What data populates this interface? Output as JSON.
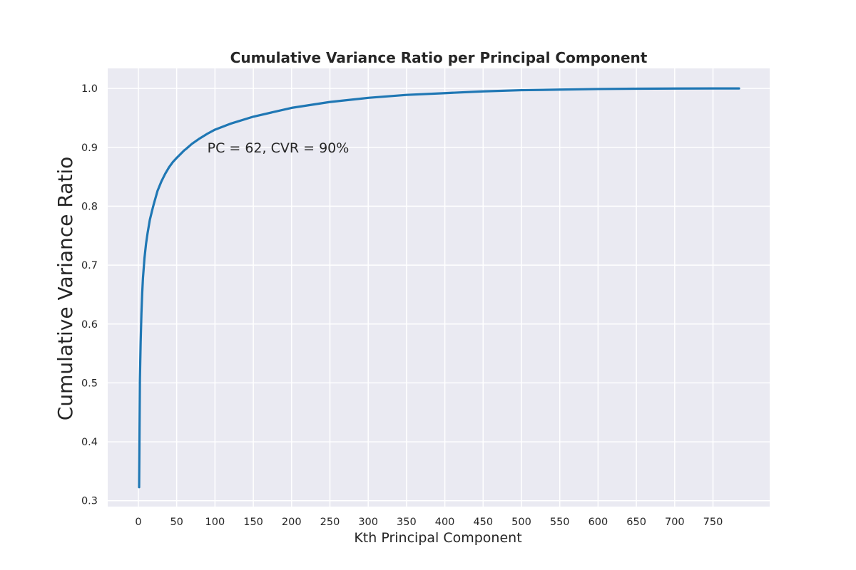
{
  "chart_data": {
    "type": "line",
    "title": "Cumulative Variance Ratio per Principal Component",
    "xlabel": "Kth Principal Component",
    "ylabel": "Cumulative Variance Ratio",
    "xlim": [
      -40,
      824
    ],
    "ylim": [
      0.29,
      1.034
    ],
    "xticks": [
      0,
      50,
      100,
      150,
      200,
      250,
      300,
      350,
      400,
      450,
      500,
      550,
      600,
      650,
      700,
      750
    ],
    "xtick_labels": [
      "0",
      "50",
      "100",
      "150",
      "200",
      "250",
      "300",
      "350",
      "400",
      "450",
      "500",
      "550",
      "600",
      "650",
      "700",
      "750"
    ],
    "yticks": [
      0.3,
      0.4,
      0.5,
      0.6,
      0.7,
      0.8,
      0.9,
      1.0
    ],
    "ytick_labels": [
      "0.3",
      "0.4",
      "0.5",
      "0.6",
      "0.7",
      "0.8",
      "0.9",
      "1.0"
    ],
    "grid": true,
    "colors": {
      "plot_background": "#eaeaf2",
      "grid": "#ffffff",
      "line": "#1f77b4"
    },
    "series": [
      {
        "x": [
          1,
          2,
          3,
          4,
          5,
          6,
          8,
          10,
          12,
          15,
          18,
          20,
          25,
          30,
          35,
          40,
          45,
          50,
          60,
          62,
          70,
          80,
          90,
          100,
          120,
          150,
          200,
          250,
          300,
          350,
          400,
          450,
          500,
          550,
          600,
          650,
          700,
          750,
          784
        ],
        "y": [
          0.323,
          0.505,
          0.57,
          0.618,
          0.652,
          0.678,
          0.712,
          0.736,
          0.754,
          0.777,
          0.793,
          0.803,
          0.826,
          0.842,
          0.855,
          0.866,
          0.875,
          0.882,
          0.895,
          0.897,
          0.906,
          0.915,
          0.923,
          0.93,
          0.94,
          0.952,
          0.967,
          0.977,
          0.984,
          0.989,
          0.992,
          0.995,
          0.997,
          0.998,
          0.999,
          0.9995,
          0.9998,
          1.0,
          1.0
        ]
      }
    ],
    "annotations": [
      {
        "text": "PC = 62, CVR = 90%",
        "x": 90,
        "y": 0.9
      }
    ]
  }
}
